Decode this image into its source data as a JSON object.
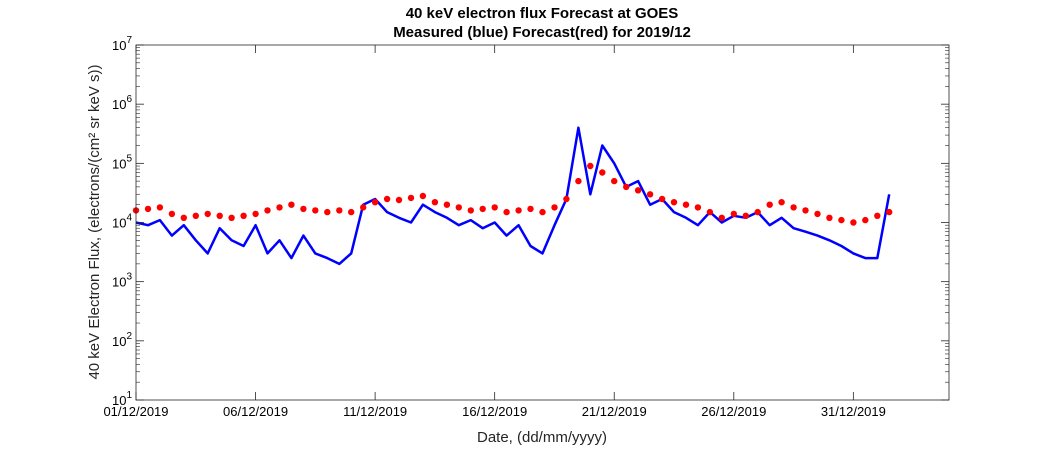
{
  "chart_data": {
    "type": "line",
    "title": "40 keV electron flux Forecast at GOES",
    "subtitle": "Measured (blue) Forecast(red) for 2019/12",
    "xlabel": "Date, (dd/mm/yyyy)",
    "ylabel": "40 keV Electron Flux, (electrons/(cm² sr keV s))",
    "yscale": "log",
    "xlim": [
      "2019-12-01",
      "2020-01-04"
    ],
    "ylim": [
      10,
      10000000
    ],
    "x_ticks": [
      "01/12/2019",
      "06/12/2019",
      "11/12/2019",
      "16/12/2019",
      "21/12/2019",
      "26/12/2019",
      "31/12/2019"
    ],
    "y_ticks": [
      {
        "base": "10",
        "exp": "1"
      },
      {
        "base": "10",
        "exp": "2"
      },
      {
        "base": "10",
        "exp": "3"
      },
      {
        "base": "10",
        "exp": "4"
      },
      {
        "base": "10",
        "exp": "5"
      },
      {
        "base": "10",
        "exp": "6"
      },
      {
        "base": "10",
        "exp": "7"
      }
    ],
    "grid": false,
    "colors": {
      "measured": "#0000ff",
      "forecast": "#ff0000"
    },
    "series": [
      {
        "style": "line",
        "color": "#0000ff",
        "x": [
          "2019-12-01 00:00",
          "2019-12-01 12:00",
          "2019-12-02 00:00",
          "2019-12-02 12:00",
          "2019-12-03 00:00",
          "2019-12-03 12:00",
          "2019-12-04 00:00",
          "2019-12-04 12:00",
          "2019-12-05 00:00",
          "2019-12-05 12:00",
          "2019-12-06 00:00",
          "2019-12-06 12:00",
          "2019-12-07 00:00",
          "2019-12-07 12:00",
          "2019-12-08 00:00",
          "2019-12-08 12:00",
          "2019-12-09 00:00",
          "2019-12-09 12:00",
          "2019-12-10 00:00",
          "2019-12-10 12:00",
          "2019-12-11 00:00",
          "2019-12-11 12:00",
          "2019-12-12 00:00",
          "2019-12-12 12:00",
          "2019-12-13 00:00",
          "2019-12-13 12:00",
          "2019-12-14 00:00",
          "2019-12-14 12:00",
          "2019-12-15 00:00",
          "2019-12-15 12:00",
          "2019-12-16 00:00",
          "2019-12-16 12:00",
          "2019-12-17 00:00",
          "2019-12-17 12:00",
          "2019-12-18 00:00",
          "2019-12-18 12:00",
          "2019-12-19 00:00",
          "2019-12-19 12:00",
          "2019-12-20 00:00",
          "2019-12-20 12:00",
          "2019-12-21 00:00",
          "2019-12-21 12:00",
          "2019-12-22 00:00",
          "2019-12-22 12:00",
          "2019-12-23 00:00",
          "2019-12-23 12:00",
          "2019-12-24 00:00",
          "2019-12-24 12:00",
          "2019-12-25 00:00",
          "2019-12-25 12:00",
          "2019-12-26 00:00",
          "2019-12-26 12:00",
          "2019-12-27 00:00",
          "2019-12-27 12:00",
          "2019-12-28 00:00",
          "2019-12-28 12:00",
          "2019-12-29 00:00",
          "2019-12-29 12:00",
          "2019-12-30 00:00",
          "2019-12-30 12:00",
          "2019-12-31 00:00",
          "2019-12-31 12:00",
          "2020-01-01 00:00",
          "2020-01-01 12:00"
        ],
        "values": [
          10000,
          9000,
          11000,
          6000,
          9000,
          5000,
          3000,
          8000,
          5000,
          4000,
          9000,
          3000,
          5000,
          2500,
          6000,
          3000,
          2500,
          2000,
          3000,
          20000,
          25000,
          15000,
          12000,
          10000,
          20000,
          15000,
          12000,
          9000,
          11000,
          8000,
          10000,
          6000,
          9000,
          4000,
          3000,
          9000,
          25000,
          400000,
          30000,
          200000,
          100000,
          40000,
          50000,
          20000,
          25000,
          15000,
          12000,
          9000,
          15000,
          10000,
          13000,
          12000,
          15000,
          9000,
          12000,
          8000,
          7000,
          6000,
          5000,
          4000,
          3000,
          2500,
          2500,
          30000
        ]
      },
      {
        "style": "markers",
        "color": "#ff0000",
        "x": [
          "2019-12-01 00:00",
          "2019-12-01 12:00",
          "2019-12-02 00:00",
          "2019-12-02 12:00",
          "2019-12-03 00:00",
          "2019-12-03 12:00",
          "2019-12-04 00:00",
          "2019-12-04 12:00",
          "2019-12-05 00:00",
          "2019-12-05 12:00",
          "2019-12-06 00:00",
          "2019-12-06 12:00",
          "2019-12-07 00:00",
          "2019-12-07 12:00",
          "2019-12-08 00:00",
          "2019-12-08 12:00",
          "2019-12-09 00:00",
          "2019-12-09 12:00",
          "2019-12-10 00:00",
          "2019-12-10 12:00",
          "2019-12-11 00:00",
          "2019-12-11 12:00",
          "2019-12-12 00:00",
          "2019-12-12 12:00",
          "2019-12-13 00:00",
          "2019-12-13 12:00",
          "2019-12-14 00:00",
          "2019-12-14 12:00",
          "2019-12-15 00:00",
          "2019-12-15 12:00",
          "2019-12-16 00:00",
          "2019-12-16 12:00",
          "2019-12-17 00:00",
          "2019-12-17 12:00",
          "2019-12-18 00:00",
          "2019-12-18 12:00",
          "2019-12-19 00:00",
          "2019-12-19 12:00",
          "2019-12-20 00:00",
          "2019-12-20 12:00",
          "2019-12-21 00:00",
          "2019-12-21 12:00",
          "2019-12-22 00:00",
          "2019-12-22 12:00",
          "2019-12-23 00:00",
          "2019-12-23 12:00",
          "2019-12-24 00:00",
          "2019-12-24 12:00",
          "2019-12-25 00:00",
          "2019-12-25 12:00",
          "2019-12-26 00:00",
          "2019-12-26 12:00",
          "2019-12-27 00:00",
          "2019-12-27 12:00",
          "2019-12-28 00:00",
          "2019-12-28 12:00",
          "2019-12-29 00:00",
          "2019-12-29 12:00",
          "2019-12-30 00:00",
          "2019-12-30 12:00",
          "2019-12-31 00:00",
          "2019-12-31 12:00",
          "2020-01-01 00:00",
          "2020-01-01 12:00"
        ],
        "values": [
          16000,
          17000,
          18000,
          14000,
          12000,
          13000,
          14000,
          13000,
          12000,
          13000,
          14000,
          16000,
          18000,
          20000,
          17000,
          16000,
          15000,
          16000,
          15000,
          18000,
          22000,
          25000,
          24000,
          26000,
          28000,
          22000,
          20000,
          18000,
          16000,
          17000,
          18000,
          15000,
          16000,
          17000,
          15000,
          18000,
          25000,
          50000,
          90000,
          70000,
          50000,
          40000,
          35000,
          30000,
          25000,
          22000,
          20000,
          18000,
          15000,
          12000,
          14000,
          13000,
          15000,
          20000,
          22000,
          18000,
          16000,
          14000,
          12000,
          11000,
          10000,
          11000,
          13000,
          15000
        ]
      }
    ]
  }
}
